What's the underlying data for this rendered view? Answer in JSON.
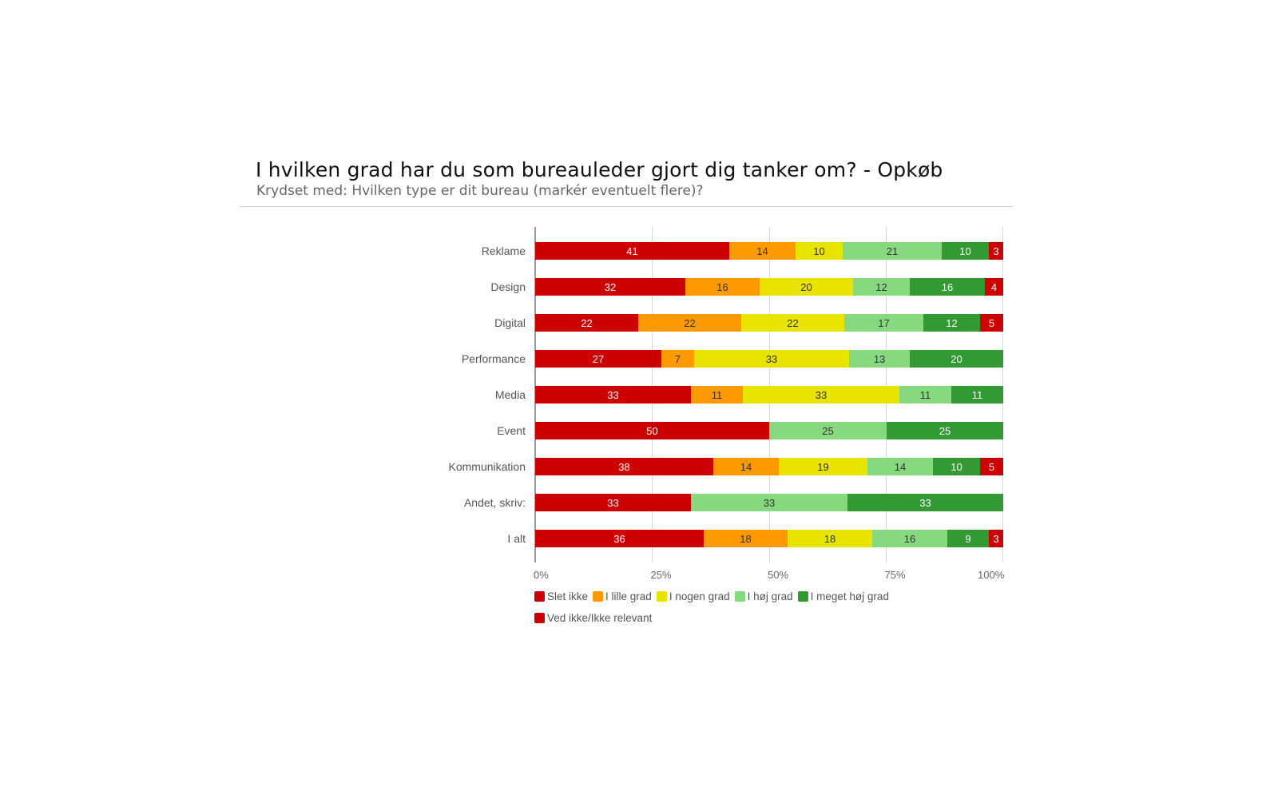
{
  "header": {
    "title": "I hvilken grad har du som bureauleder gjort dig tanker om? - Opkøb",
    "subtitle": "Krydset med: Hvilken type er dit bureau (markér eventuelt flere)?"
  },
  "colors": {
    "slet_ikke": "#cc0000",
    "i_lille_grad": "#ff9900",
    "i_nogen_grad": "#e8e400",
    "i_hoj_grad": "#86d97f",
    "i_meget_hoj_grad": "#339933",
    "ved_ikke": "#cc0000"
  },
  "chart_data": {
    "type": "bar",
    "orientation": "horizontal",
    "stacked": "percent",
    "title": "I hvilken grad har du som bureauleder gjort dig tanker om? - Opkøb",
    "subtitle": "Krydset med: Hvilken type er dit bureau (markér eventuelt flere)?",
    "xlabel": "",
    "ylabel": "",
    "xlim": [
      0,
      100
    ],
    "x_ticks": [
      "0%",
      "25%",
      "50%",
      "75%",
      "100%"
    ],
    "grid": true,
    "legend_position": "bottom",
    "categories": [
      "Reklame",
      "Design",
      "Digital",
      "Performance",
      "Media",
      "Event",
      "Kommunikation",
      "Andet, skriv:",
      "I alt"
    ],
    "series": [
      {
        "name": "Slet ikke",
        "color": "#cc0000",
        "values": [
          41,
          32,
          22,
          27,
          33,
          50,
          38,
          33,
          36
        ]
      },
      {
        "name": "I lille grad",
        "color": "#ff9900",
        "values": [
          14,
          16,
          22,
          7,
          11,
          0,
          14,
          0,
          18
        ]
      },
      {
        "name": "I nogen grad",
        "color": "#e8e400",
        "values": [
          10,
          20,
          22,
          33,
          33,
          0,
          19,
          0,
          18
        ]
      },
      {
        "name": "I høj grad",
        "color": "#86d97f",
        "values": [
          21,
          12,
          17,
          13,
          11,
          25,
          14,
          33,
          16
        ]
      },
      {
        "name": "I meget høj grad",
        "color": "#339933",
        "values": [
          10,
          16,
          12,
          20,
          11,
          25,
          10,
          33,
          9
        ]
      },
      {
        "name": "Ved ikke/Ikke relevant",
        "color": "#cc0000",
        "values": [
          3,
          4,
          5,
          0,
          0,
          0,
          5,
          0,
          3
        ]
      }
    ]
  },
  "axis": {
    "ticks": [
      {
        "label": "0%",
        "pos": 0
      },
      {
        "label": "25%",
        "pos": 25
      },
      {
        "label": "50%",
        "pos": 50
      },
      {
        "label": "75%",
        "pos": 75
      },
      {
        "label": "100%",
        "pos": 100
      }
    ]
  },
  "legend": {
    "items": [
      {
        "label": "Slet ikke",
        "color": "#cc0000"
      },
      {
        "label": "I lille grad",
        "color": "#ff9900"
      },
      {
        "label": "I nogen grad",
        "color": "#e8e400"
      },
      {
        "label": "I høj grad",
        "color": "#86d97f"
      },
      {
        "label": "I meget høj grad",
        "color": "#339933"
      },
      {
        "label": "Ved ikke/Ikke relevant",
        "color": "#cc0000"
      }
    ]
  }
}
